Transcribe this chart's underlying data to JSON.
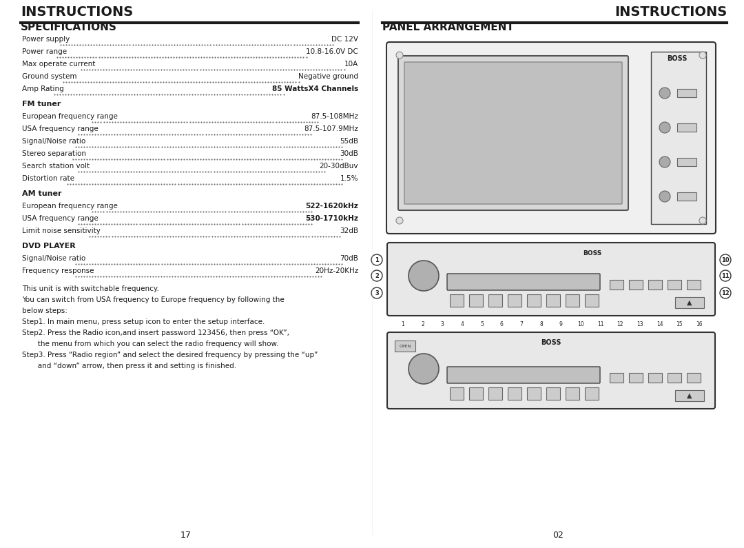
{
  "bg_color": "#ffffff",
  "text_color": "#1a1a1a",
  "header_color": "#1a1a1a",
  "left_header": "INSTRUCTIONS",
  "right_header": "INSTRUCTIONS",
  "left_section": "SPECIFICATIONS",
  "right_section": "PANEL ARRANGEMENT",
  "specs": [
    {
      "label": "Power supply",
      "value": "DC 12V",
      "bold_value": false
    },
    {
      "label": "Power range",
      "value": "10.8-16.0V DC",
      "bold_value": false
    },
    {
      "label": "Max operate current",
      "value": "10A",
      "bold_value": false
    },
    {
      "label": "Ground system",
      "value": "Negative ground",
      "bold_value": false
    },
    {
      "label": "Amp Rating",
      "value": "85 WattsX4 Channels",
      "bold_value": true
    }
  ],
  "fm_specs": [
    {
      "label": "European frequency range",
      "value": "87.5-108MHz",
      "bold_value": false
    },
    {
      "label": "USA frequency range",
      "value": "87.5-107.9MHz",
      "bold_value": false
    },
    {
      "label": "Signal/Noise ratio",
      "value": "55dB",
      "bold_value": false
    },
    {
      "label": "Stereo separation",
      "value": "30dB",
      "bold_value": false
    },
    {
      "label": "Search station volt",
      "value": "20-30dBuv",
      "bold_value": false
    },
    {
      "label": "Distortion rate",
      "value": "1.5%",
      "bold_value": false
    }
  ],
  "am_specs": [
    {
      "label": "European frequency range",
      "value": "522-1620kHz",
      "bold_value": true
    },
    {
      "label": "USA frequency range",
      "value": "530-1710kHz",
      "bold_value": true
    },
    {
      "label": "Limit noise sensitivity",
      "value": "32dB",
      "bold_value": false
    }
  ],
  "dvd_specs": [
    {
      "label": "Signal/Noise ratio",
      "value": "70dB",
      "bold_value": false
    },
    {
      "label": "Frequency response",
      "value": "20Hz-20KHz",
      "bold_value": false
    }
  ],
  "note_lines": [
    "This unit is with switchable frequency.",
    "You can switch from USA frequency to Europe frequency by following the",
    "below steps:",
    "Step1. In main menu, press setup icon to enter the setup interface.",
    "Step2. Press the Radio icon,and insert password 123456, then press “OK”,",
    "       the menu from which you can select the radio frequency will show.",
    "Step3. Press “Radio region” and select the desired frequency by pressing the “up”",
    "       and “down” arrow, then press it and setting is finished."
  ],
  "page_left": "17",
  "page_right": "02"
}
